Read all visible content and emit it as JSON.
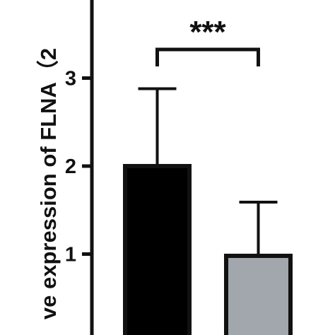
{
  "chart_data": {
    "type": "bar",
    "title": "",
    "xlabel": "",
    "ylabel": "ve expression of FLNA（2",
    "ylim": [
      0,
      3.8
    ],
    "yticks": [
      1,
      2,
      3
    ],
    "categories": [
      "",
      ""
    ],
    "values": [
      2.0,
      0.98
    ],
    "errors": [
      0.88,
      0.61
    ],
    "bar_colors": [
      "#000000",
      "#a1a7ac"
    ],
    "annotation": {
      "text": "***",
      "between": [
        0,
        1
      ]
    },
    "grid": false
  }
}
